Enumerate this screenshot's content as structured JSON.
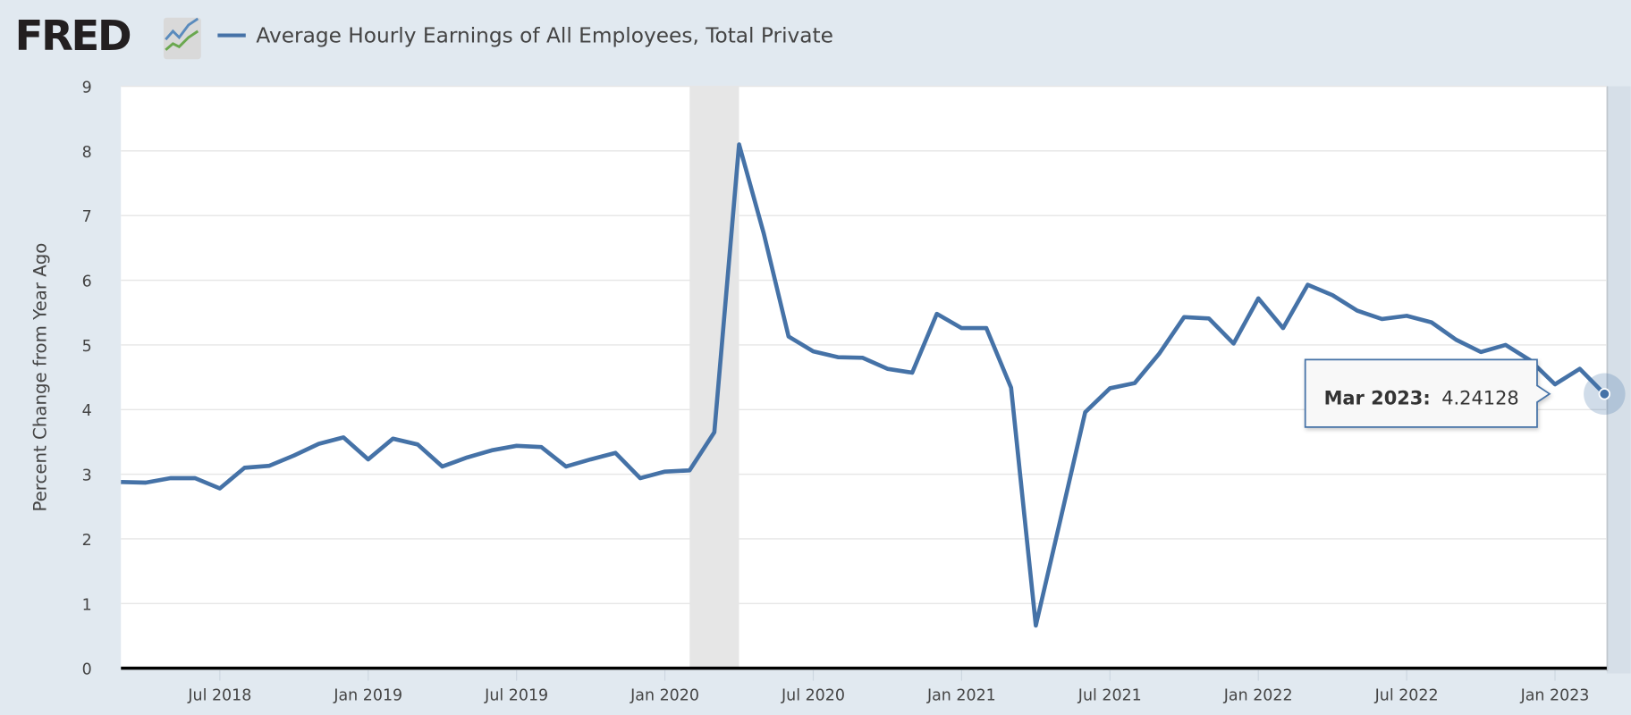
{
  "header": {
    "logo_text": "FRED",
    "series_title": "Average Hourly Earnings of All Employees, Total Private"
  },
  "tooltip": {
    "date": "Mar 2023:",
    "value": "4.24128"
  },
  "colors": {
    "series": "#4572a7",
    "background": "#e1e9f0",
    "recession": "#e6e6e6"
  },
  "chart_data": {
    "type": "line",
    "title": "Average Hourly Earnings of All Employees, Total Private",
    "xlabel": "",
    "ylabel": "Percent Change from Year Ago",
    "ylim": [
      0,
      9
    ],
    "yticks": [
      "0",
      "1",
      "2",
      "3",
      "4",
      "5",
      "6",
      "7",
      "8",
      "9"
    ],
    "grid": true,
    "frequency": "monthly",
    "start": "Mar 2018",
    "end": "Mar 2023",
    "xtick_labels": [
      {
        "index": 4,
        "label": "Jul 2018"
      },
      {
        "index": 10,
        "label": "Jan 2019"
      },
      {
        "index": 16,
        "label": "Jul 2019"
      },
      {
        "index": 22,
        "label": "Jan 2020"
      },
      {
        "index": 28,
        "label": "Jul 2020"
      },
      {
        "index": 34,
        "label": "Jan 2021"
      },
      {
        "index": 40,
        "label": "Jul 2021"
      },
      {
        "index": 46,
        "label": "Jan 2022"
      },
      {
        "index": 52,
        "label": "Jul 2022"
      },
      {
        "index": 58,
        "label": "Jan 2023"
      }
    ],
    "recession": {
      "start": "Feb 2020",
      "end": "Apr 2020"
    },
    "series": [
      {
        "name": "Average Hourly Earnings of All Employees, Total Private",
        "values": [
          2.88,
          2.87,
          2.94,
          2.94,
          2.78,
          3.1,
          3.13,
          3.29,
          3.47,
          3.57,
          3.23,
          3.55,
          3.46,
          3.12,
          3.26,
          3.37,
          3.44,
          3.42,
          3.12,
          3.23,
          3.33,
          2.94,
          3.04,
          3.06,
          3.65,
          8.1,
          6.72,
          5.13,
          4.9,
          4.81,
          4.8,
          4.63,
          4.57,
          5.48,
          5.26,
          5.26,
          4.34,
          0.66,
          2.3,
          3.96,
          4.33,
          4.41,
          4.87,
          5.43,
          5.41,
          5.02,
          5.72,
          5.26,
          5.93,
          5.77,
          5.53,
          5.4,
          5.45,
          5.35,
          5.08,
          4.89,
          5.0,
          4.76,
          4.39,
          4.63,
          4.24128
        ]
      }
    ]
  }
}
